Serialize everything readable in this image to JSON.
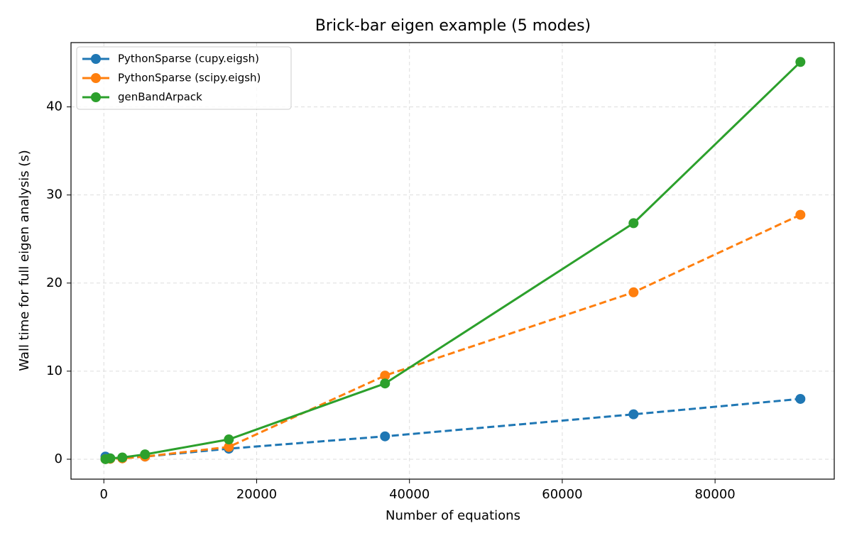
{
  "chart_data": {
    "type": "line",
    "title": "Brick-bar eigen example (5 modes)",
    "xlabel": "Number of equations",
    "ylabel": "Wall time for full eigen analysis (s)",
    "x": [
      210,
      840,
      2420,
      5390,
      16360,
      36800,
      69330,
      91170
    ],
    "series": [
      {
        "name": "PythonSparse (cupy.eigsh)",
        "color": "#1f77b4",
        "dashed": true,
        "values": [
          0.3,
          0.1,
          0.15,
          0.3,
          1.2,
          2.6,
          5.1,
          6.85
        ]
      },
      {
        "name": "PythonSparse (scipy.eigsh)",
        "color": "#ff7f0e",
        "dashed": true,
        "values": [
          0.02,
          0.05,
          0.1,
          0.3,
          1.4,
          9.5,
          18.95,
          27.75
        ]
      },
      {
        "name": "genBandArpack",
        "color": "#2ca02c",
        "dashed": false,
        "values": [
          0.01,
          0.1,
          0.2,
          0.55,
          2.25,
          8.6,
          26.8,
          45.1
        ]
      }
    ],
    "xlim": [
      -4300,
      95600
    ],
    "xticks": [
      0,
      20000,
      40000,
      60000,
      80000
    ],
    "ylim": [
      -2.26,
      47.3
    ],
    "yticks": [
      0,
      10,
      20,
      30,
      40
    ],
    "grid": true,
    "legend": "upper-left"
  }
}
